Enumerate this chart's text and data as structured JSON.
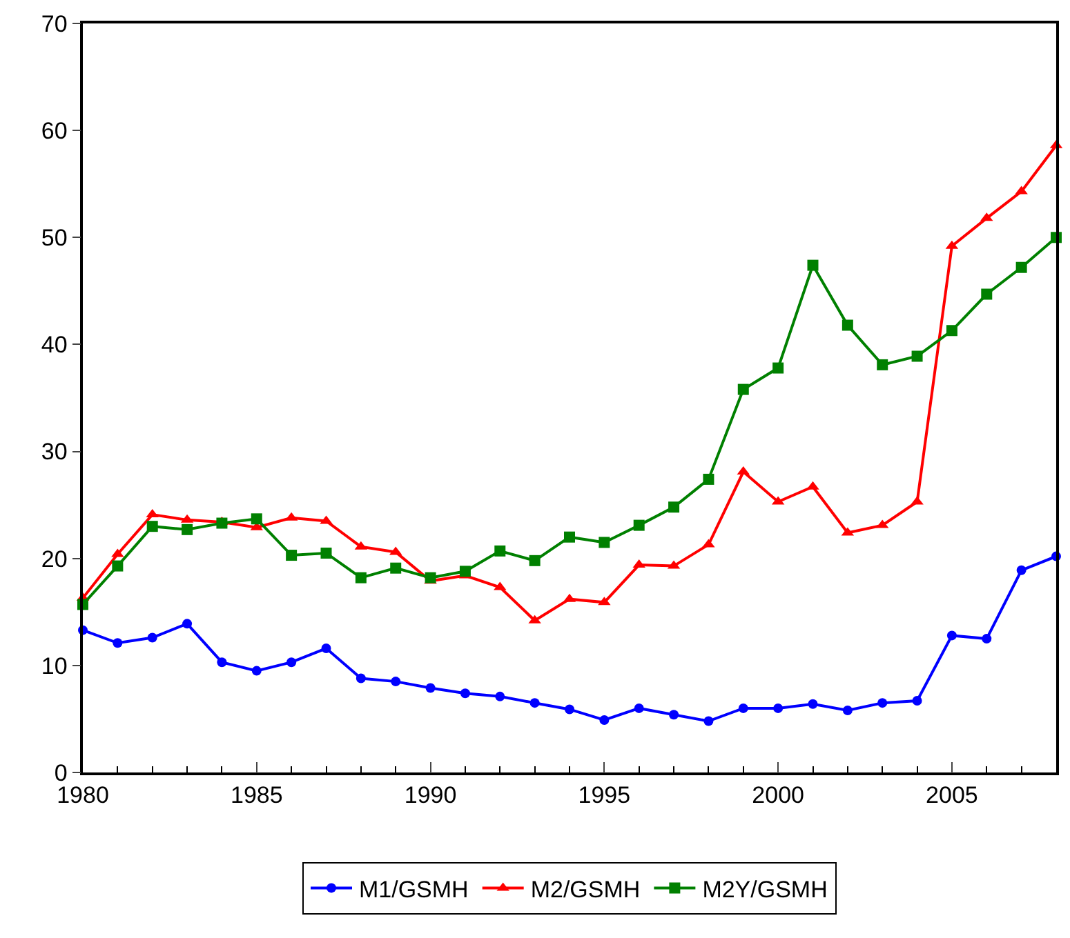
{
  "chart_data": {
    "type": "line",
    "x": [
      1980,
      1981,
      1982,
      1983,
      1984,
      1985,
      1986,
      1987,
      1988,
      1989,
      1990,
      1991,
      1992,
      1993,
      1994,
      1995,
      1996,
      1997,
      1998,
      1999,
      2000,
      2001,
      2002,
      2003,
      2004,
      2005,
      2006,
      2007,
      2008
    ],
    "series": [
      {
        "name": "M1/GSMH",
        "color": "#0000ff",
        "marker": "circle",
        "values": [
          13.3,
          12.1,
          12.6,
          13.9,
          10.3,
          9.5,
          10.3,
          11.6,
          8.8,
          8.5,
          7.9,
          7.4,
          7.1,
          6.5,
          5.9,
          4.9,
          6.0,
          5.4,
          4.8,
          6.0,
          6.0,
          6.4,
          5.8,
          6.5,
          6.7,
          12.8,
          12.5,
          18.9,
          20.2
        ]
      },
      {
        "name": "M2/GSMH",
        "color": "#ff0000",
        "marker": "triangle",
        "values": [
          16.3,
          20.4,
          24.1,
          23.6,
          23.4,
          22.9,
          23.8,
          23.5,
          21.1,
          20.6,
          17.9,
          18.4,
          17.3,
          14.2,
          16.2,
          15.9,
          19.4,
          19.3,
          21.3,
          28.1,
          25.3,
          26.7,
          22.4,
          23.1,
          25.3,
          49.2,
          51.8,
          54.3,
          58.6
        ]
      },
      {
        "name": "M2Y/GSMH",
        "color": "#008000",
        "marker": "square",
        "values": [
          15.7,
          19.3,
          23.0,
          22.7,
          23.3,
          23.7,
          20.3,
          20.5,
          18.2,
          19.1,
          18.2,
          18.8,
          20.7,
          19.8,
          22.0,
          21.5,
          23.1,
          24.8,
          27.4,
          35.8,
          37.8,
          47.4,
          41.8,
          38.1,
          38.9,
          41.3,
          44.7,
          47.2,
          50.0
        ]
      }
    ],
    "xlim": [
      1980,
      2008
    ],
    "xticks": [
      1980,
      1985,
      1990,
      1995,
      2000,
      2005
    ],
    "ylim": [
      0,
      70
    ],
    "yticks": [
      0,
      10,
      20,
      30,
      40,
      50,
      60,
      70
    ],
    "legend": "bottom",
    "line_style": "solid"
  }
}
